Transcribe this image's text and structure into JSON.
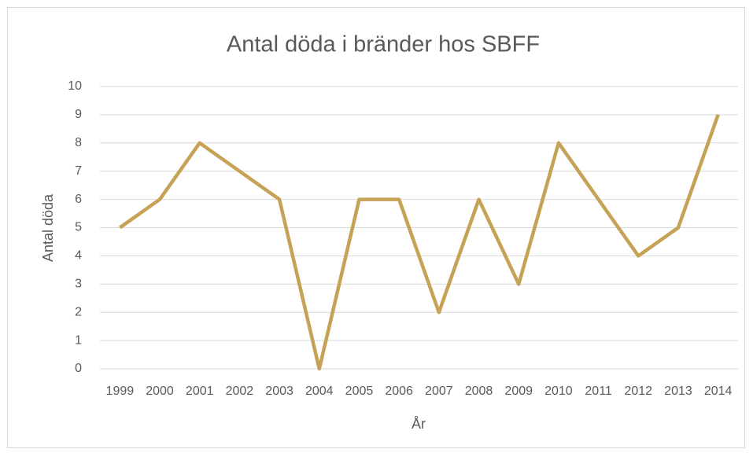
{
  "chart_data": {
    "type": "line",
    "title": "Antal döda i bränder hos SBFF",
    "x_label": "År",
    "y_label": "Antal döda",
    "categories": [
      "1999",
      "2000",
      "2001",
      "2002",
      "2003",
      "2004",
      "2005",
      "2006",
      "2007",
      "2008",
      "2009",
      "2010",
      "2011",
      "2012",
      "2013",
      "2014"
    ],
    "series": [
      {
        "name": "Antal döda",
        "color": "#c6a256",
        "values": [
          5,
          6,
          8,
          7,
          6,
          0,
          6,
          6,
          2,
          6,
          3,
          8,
          6,
          4,
          5,
          9
        ]
      }
    ],
    "ylim": [
      0,
      10
    ],
    "yticks": [
      0,
      1,
      2,
      3,
      4,
      5,
      6,
      7,
      8,
      9,
      10
    ],
    "grid": true,
    "legend": false
  }
}
